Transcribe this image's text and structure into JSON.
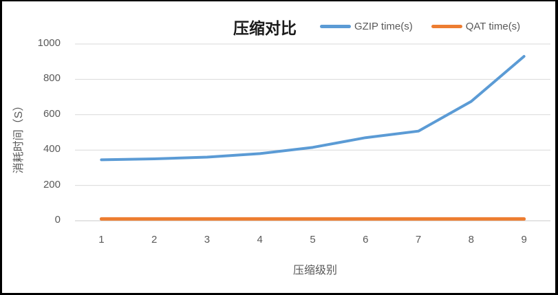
{
  "chart_data": {
    "type": "line",
    "title": "压缩对比",
    "xlabel": "压缩级别",
    "ylabel": "消耗时间（S）",
    "categories": [
      "1",
      "2",
      "3",
      "4",
      "5",
      "6",
      "7",
      "8",
      "9"
    ],
    "series": [
      {
        "name": "GZIP time(s)",
        "color": "#5B9BD5",
        "values": [
          345,
          350,
          360,
          380,
          415,
          470,
          507,
          675,
          930
        ]
      },
      {
        "name": "QAT time(s)",
        "color": "#ED7D31",
        "values": [
          10,
          10,
          10,
          10,
          10,
          10,
          10,
          10,
          10
        ]
      }
    ],
    "ylim": [
      0,
      1000
    ],
    "ytick_step": 200,
    "yticks": [
      "0",
      "200",
      "400",
      "600",
      "800",
      "1000"
    ],
    "grid": true,
    "legend_position": "top"
  },
  "colors": {
    "gzip_line": "#5B9BD5",
    "qat_line": "#ED7D31",
    "gridline": "#D9D9D9",
    "axis_line": "#C9C9C9",
    "tick_text": "#595959",
    "title_text": "#1a1a1a",
    "frame_border": "#000000",
    "background": "#FFFFFF"
  }
}
